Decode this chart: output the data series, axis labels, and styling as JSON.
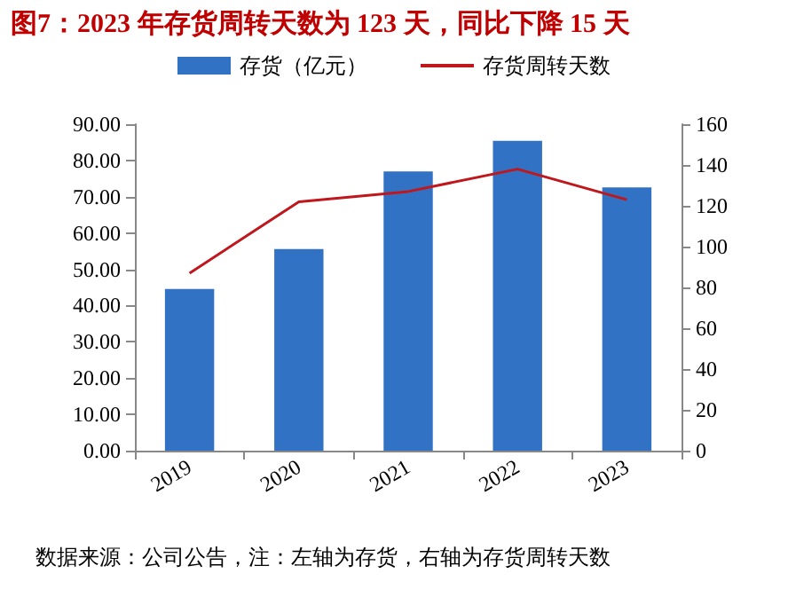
{
  "chart_data": {
    "type": "bar",
    "title": "图7：2023 年存货周转天数为 123 天，同比下降 15 天",
    "categories": [
      "2019",
      "2020",
      "2021",
      "2022",
      "2023"
    ],
    "series": [
      {
        "name": "存货（亿元）",
        "color": "#3272c4",
        "values": [
          44.6,
          55.6,
          77.0,
          85.4,
          72.6
        ]
      },
      {
        "name": "存货周转天数",
        "type": "line",
        "axis": "y2",
        "color": "#c0171c",
        "values": [
          87,
          122,
          127,
          138,
          123
        ]
      }
    ],
    "ylim": [
      0,
      90
    ],
    "yticks": [
      {
        "value": 0,
        "label": "0.00"
      },
      {
        "value": 10,
        "label": "10.00"
      },
      {
        "value": 20,
        "label": "20.00"
      },
      {
        "value": 30,
        "label": "30.00"
      },
      {
        "value": 40,
        "label": "40.00"
      },
      {
        "value": 50,
        "label": "50.00"
      },
      {
        "value": 60,
        "label": "60.00"
      },
      {
        "value": 70,
        "label": "70.00"
      },
      {
        "value": 80,
        "label": "80.00"
      },
      {
        "value": 90,
        "label": "90.00"
      }
    ],
    "y2lim": [
      0,
      160
    ],
    "y2ticks": [
      0,
      20,
      40,
      60,
      80,
      100,
      120,
      140,
      160
    ],
    "annotations": [
      "数据来源：公司公告，注：左轴为存货，右轴为存货周转天数"
    ],
    "legend": "top",
    "grid": false,
    "marker": "none"
  }
}
